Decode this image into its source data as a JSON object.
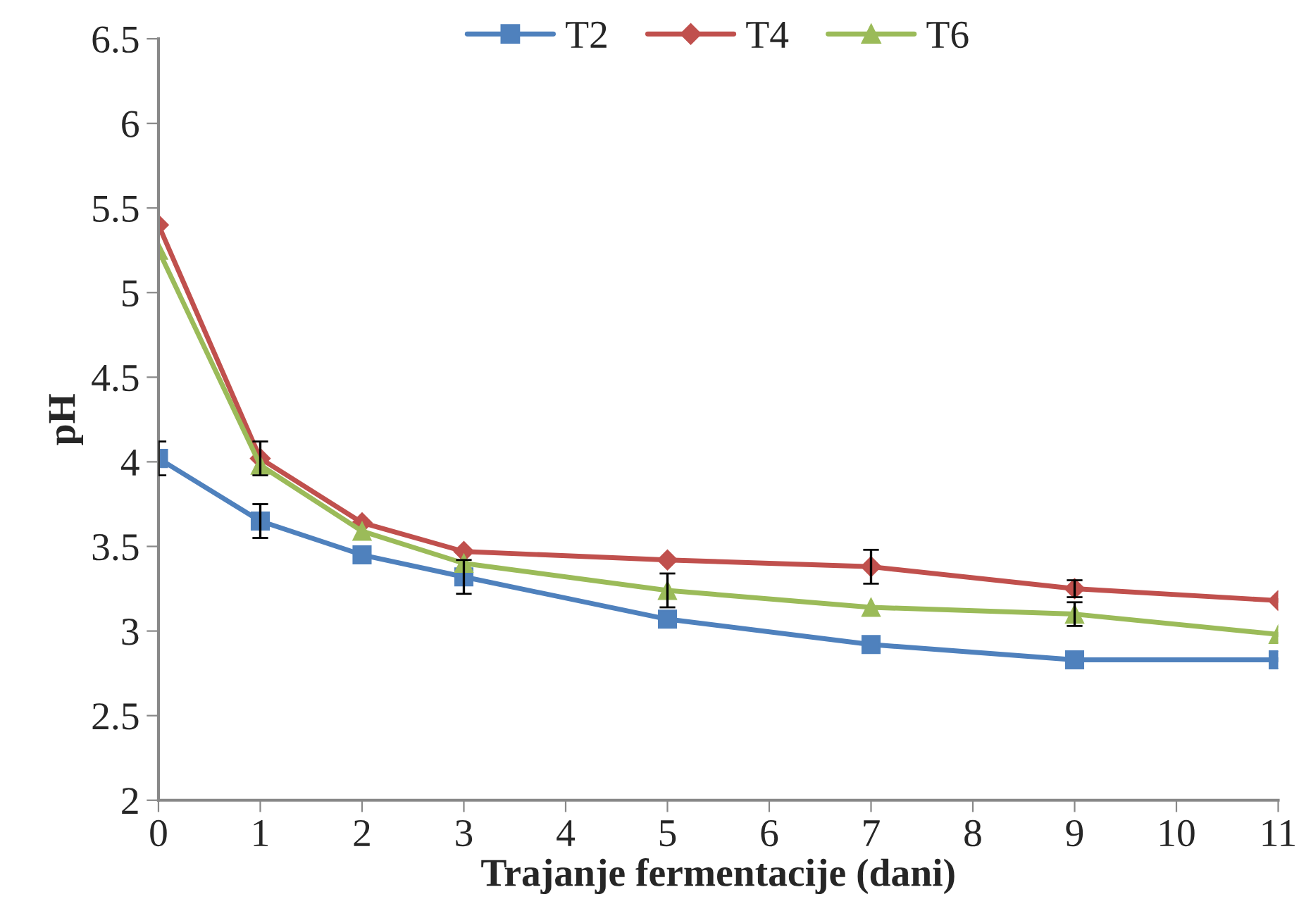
{
  "chart_data": {
    "type": "line",
    "xlabel": "Trajanje fermentacije (dani)",
    "ylabel": "pH",
    "x": [
      0,
      1,
      2,
      3,
      5,
      7,
      9,
      11
    ],
    "xlim": [
      0,
      11
    ],
    "xticks": [
      0,
      1,
      2,
      3,
      4,
      5,
      6,
      7,
      8,
      9,
      10,
      11
    ],
    "ylim": [
      2,
      6.5
    ],
    "yticks": [
      2,
      {
        "value": 2.5,
        "label": "2.5"
      },
      3,
      {
        "value": 3.5,
        "label": "3.5"
      },
      4,
      {
        "value": 4.5,
        "label": "4.5"
      },
      5,
      {
        "value": 5.5,
        "label": "5.5"
      },
      6,
      {
        "value": 6.5,
        "label": "6.5"
      }
    ],
    "grid": false,
    "legend": "top",
    "line_style": "solid",
    "series": [
      {
        "name": "T2",
        "color": "#4f81bd",
        "marker": "square",
        "values": [
          4.02,
          3.65,
          3.45,
          3.32,
          3.07,
          2.92,
          2.83,
          2.83
        ],
        "errors": [
          0.1,
          0.1,
          null,
          0.1,
          null,
          null,
          null,
          null
        ]
      },
      {
        "name": "T4",
        "color": "#c0504d",
        "marker": "diamond",
        "values": [
          5.4,
          4.02,
          3.64,
          3.47,
          3.42,
          3.38,
          3.25,
          3.18
        ],
        "errors": [
          null,
          0.1,
          null,
          null,
          null,
          0.1,
          0.05,
          null
        ]
      },
      {
        "name": "T6",
        "color": "#9bbb59",
        "marker": "triangle",
        "values": [
          5.25,
          3.98,
          3.59,
          3.4,
          3.24,
          3.14,
          3.1,
          2.98
        ],
        "errors": [
          null,
          null,
          null,
          null,
          0.1,
          null,
          0.07,
          null
        ]
      }
    ]
  }
}
